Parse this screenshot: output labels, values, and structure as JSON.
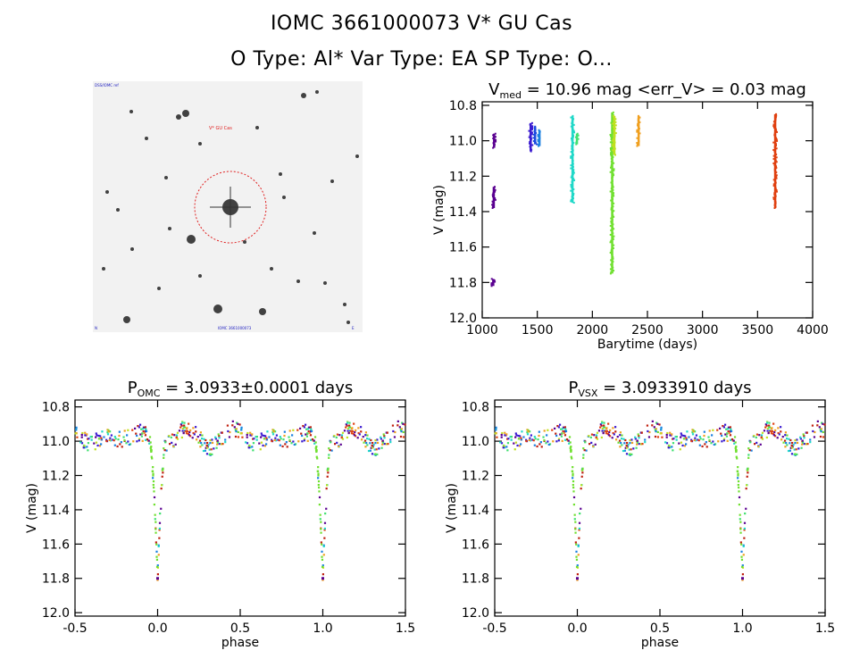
{
  "header": {
    "line1": "IOMC 3661000073   V* GU Cas",
    "line2": "O Type: Al*  Var Type: EA  SP Type: O..."
  },
  "finder_chart": {
    "target_label": "V* GU Cas",
    "corner_tl": "DSS/IOMC ref",
    "corner_bl": "N",
    "corner_br": "E",
    "bottom_label": "IOMC 3661000073"
  },
  "chart_data": [
    {
      "id": "light_curve",
      "type": "scatter",
      "title": "V_med = 10.96 mag <err_V> = 0.03 mag",
      "title_parts": {
        "main": "V",
        "sub": "med",
        "rest": " = 10.96 mag <err_V> = 0.03 mag"
      },
      "xlabel": "Barytime (days)",
      "ylabel": "V (mag)",
      "xlim": [
        1000,
        4000
      ],
      "ylim": [
        12.0,
        10.78
      ],
      "xticks": [
        1000,
        1500,
        2000,
        2500,
        3000,
        3500,
        4000
      ],
      "yticks": [
        10.8,
        11.0,
        11.2,
        11.4,
        11.6,
        11.8,
        12.0
      ],
      "segments": [
        {
          "x": 1100,
          "y_min": 11.78,
          "y_max": 11.82,
          "color": "#5a0090"
        },
        {
          "x": 1105,
          "y_min": 11.26,
          "y_max": 11.38,
          "color": "#5a0090"
        },
        {
          "x": 1108,
          "y_min": 10.96,
          "y_max": 11.04,
          "color": "#5a0090"
        },
        {
          "x": 1440,
          "y_min": 10.9,
          "y_max": 11.06,
          "color": "#3a1ad0"
        },
        {
          "x": 1480,
          "y_min": 10.92,
          "y_max": 11.02,
          "color": "#1a4ae0"
        },
        {
          "x": 1520,
          "y_min": 10.94,
          "y_max": 11.03,
          "color": "#1a80e0"
        },
        {
          "x": 1820,
          "y_min": 10.86,
          "y_max": 11.35,
          "color": "#20d8c8"
        },
        {
          "x": 1860,
          "y_min": 10.96,
          "y_max": 11.02,
          "color": "#40e070"
        },
        {
          "x": 2180,
          "y_min": 10.84,
          "y_max": 11.75,
          "color": "#70e030"
        },
        {
          "x": 2200,
          "y_min": 10.86,
          "y_max": 11.08,
          "color": "#c0e020"
        },
        {
          "x": 2420,
          "y_min": 10.86,
          "y_max": 11.03,
          "color": "#f0a020"
        },
        {
          "x": 3660,
          "y_min": 10.85,
          "y_max": 11.38,
          "color": "#e04010"
        }
      ]
    },
    {
      "id": "phase_omc",
      "type": "scatter",
      "title": "P_OMC = 3.0933±0.0001 days",
      "title_parts": {
        "main": "P",
        "sub": "OMC",
        "rest": " = 3.0933±0.0001 days"
      },
      "xlabel": "phase",
      "ylabel": "V (mag)",
      "xlim": [
        -0.5,
        1.5
      ],
      "ylim": [
        12.02,
        10.76
      ],
      "xticks": [
        -0.5,
        0.0,
        0.5,
        1.0,
        1.5
      ],
      "yticks": [
        10.8,
        11.0,
        11.2,
        11.4,
        11.6,
        11.8,
        12.0
      ],
      "eclipse_phase": 0.0,
      "eclipse_depth": 11.8,
      "out_of_eclipse": 10.98
    },
    {
      "id": "phase_vsx",
      "type": "scatter",
      "title": "P_VSX = 3.0933910 days",
      "title_parts": {
        "main": "P",
        "sub": "VSX",
        "rest": " = 3.0933910 days"
      },
      "xlabel": "phase",
      "ylabel": "V (mag)",
      "xlim": [
        -0.5,
        1.5
      ],
      "ylim": [
        12.02,
        10.76
      ],
      "xticks": [
        -0.5,
        0.0,
        0.5,
        1.0,
        1.5
      ],
      "yticks": [
        10.8,
        11.0,
        11.2,
        11.4,
        11.6,
        11.8,
        12.0
      ],
      "eclipse_phase": 0.0,
      "eclipse_depth": 11.8,
      "out_of_eclipse": 10.98
    }
  ],
  "palette": [
    "#5a0090",
    "#3a1ad0",
    "#1a80e0",
    "#20d8c8",
    "#40e070",
    "#70e030",
    "#c0e020",
    "#f0a020",
    "#e04010",
    "#c02010"
  ]
}
